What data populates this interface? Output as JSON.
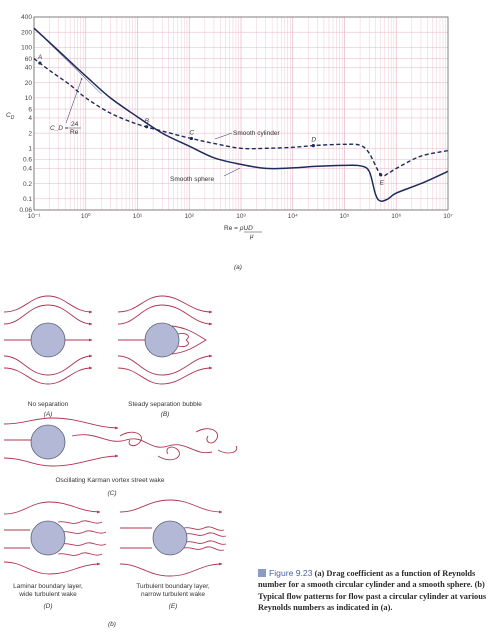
{
  "chart_data": {
    "type": "line",
    "xscale": "log",
    "yscale": "log",
    "xlim": [
      0.1,
      10000000
    ],
    "ylim": [
      0.06,
      400
    ],
    "x_ticks": [
      "10⁻¹",
      "10⁰",
      "10¹",
      "10²",
      "10³",
      "10⁴",
      "10⁵",
      "10⁶",
      "10⁷"
    ],
    "y_ticks": [
      "400",
      "200",
      "100",
      "60",
      "40",
      "20",
      "10",
      "6",
      "4",
      "2",
      "1",
      "0.6",
      "0.4",
      "0.2",
      "0.1",
      "0.06"
    ],
    "ylabel": "C_D",
    "xlabel": "Re = ρUD/μ",
    "grid": true,
    "series": [
      {
        "name": "Smooth cylinder",
        "style": "dashed",
        "points": [
          [
            0.1,
            60
          ],
          [
            0.2,
            35
          ],
          [
            0.5,
            18
          ],
          [
            1,
            10
          ],
          [
            3,
            5
          ],
          [
            10,
            3
          ],
          [
            30,
            2.2
          ],
          [
            100,
            1.6
          ],
          [
            300,
            1.25
          ],
          [
            1000,
            1.0
          ],
          [
            3000,
            1.0
          ],
          [
            10000,
            1.05
          ],
          [
            30000,
            1.15
          ],
          [
            100000,
            1.2
          ],
          [
            200000,
            1.15
          ],
          [
            300000,
            0.8
          ],
          [
            500000,
            0.3
          ],
          [
            700000,
            0.32
          ],
          [
            1000000,
            0.4
          ],
          [
            3000000,
            0.7
          ],
          [
            10000000,
            0.9
          ]
        ]
      },
      {
        "name": "Smooth sphere",
        "style": "solid",
        "points": [
          [
            0.1,
            240
          ],
          [
            0.3,
            85
          ],
          [
            1,
            27
          ],
          [
            3,
            10
          ],
          [
            10,
            4.2
          ],
          [
            30,
            2.0
          ],
          [
            100,
            1.1
          ],
          [
            300,
            0.65
          ],
          [
            1000,
            0.48
          ],
          [
            3000,
            0.4
          ],
          [
            10000,
            0.41
          ],
          [
            30000,
            0.44
          ],
          [
            100000,
            0.46
          ],
          [
            200000,
            0.45
          ],
          [
            300000,
            0.35
          ],
          [
            400000,
            0.12
          ],
          [
            500000,
            0.09
          ],
          [
            700000,
            0.1
          ],
          [
            1000000,
            0.13
          ],
          [
            3000000,
            0.2
          ],
          [
            10000000,
            0.35
          ]
        ]
      },
      {
        "name": "C_D = 24/Re",
        "style": "thin",
        "points": [
          [
            0.1,
            240
          ],
          [
            1,
            24
          ],
          [
            2,
            12
          ]
        ]
      }
    ],
    "annotations": [
      {
        "label": "A",
        "x": 0.13
      },
      {
        "label": "B",
        "x": 15
      },
      {
        "label": "C",
        "x": 110
      },
      {
        "label": "D",
        "x": 25000
      },
      {
        "label": "E",
        "x": 500000
      }
    ],
    "annotation_texts": {
      "cylinder": "Smooth cylinder",
      "sphere": "Smooth sphere",
      "stokes_lhs": "C_D =",
      "stokes_num": "24",
      "stokes_den": "Re"
    },
    "panel_label": "(a)"
  },
  "flow_panels": [
    {
      "letter": "(A)",
      "caption": "No separation"
    },
    {
      "letter": "(B)",
      "caption": "Steady separation bubble"
    },
    {
      "letter": "(C)",
      "caption": "Oscillating Karman vortex street wake"
    },
    {
      "letter": "(D)",
      "caption_1": "Laminar boundary layer,",
      "caption_2": "wide turbulent wake"
    },
    {
      "letter": "(E)",
      "caption_1": "Turbulent boundary layer,",
      "caption_2": "narrow turbulent wake"
    }
  ],
  "panel_b_label": "(b)",
  "caption": {
    "figure": "Figure 9.23",
    "text": "(a) Drag coefficient as a function of Reynolds number for a smooth circular cylinder and a smooth sphere. (b) Typical flow patterns for flow past a circular cylinder at various Reynolds numbers as indicated in (a)."
  },
  "colors": {
    "grid": "#e8b5c3",
    "axis": "#555555",
    "curve": "#1d2a5c",
    "stream": "#b0354f",
    "body": "#b3b8d6",
    "caption_accent": "#4a62a8"
  }
}
